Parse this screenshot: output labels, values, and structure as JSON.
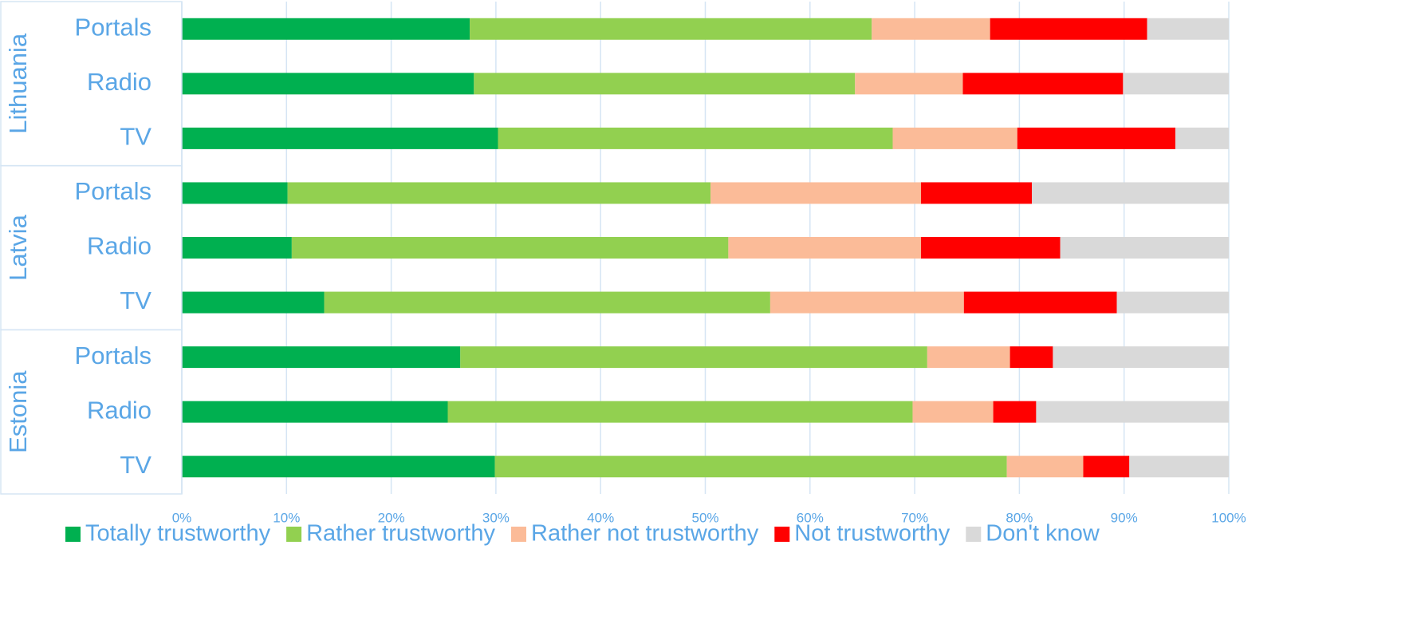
{
  "chart_data": {
    "type": "stacked-barh",
    "groups": [
      {
        "name": "Lithuania",
        "categories": [
          "Portals",
          "Radio",
          "TV"
        ]
      },
      {
        "name": "Latvia",
        "categories": [
          "Portals",
          "Radio",
          "TV"
        ]
      },
      {
        "name": "Estonia",
        "categories": [
          "Portals",
          "Radio",
          "TV"
        ]
      }
    ],
    "series": [
      {
        "name": "Totally trustworthy",
        "color": "#00b050",
        "values": [
          27.5,
          27.9,
          30.2,
          10.1,
          10.5,
          13.6,
          26.6,
          25.4,
          29.9
        ]
      },
      {
        "name": "Rather trustworthy",
        "color": "#92d050",
        "values": [
          38.4,
          36.4,
          37.7,
          40.4,
          41.7,
          42.6,
          44.6,
          44.4,
          48.9
        ]
      },
      {
        "name": "Rather not trustworthy",
        "color": "#fbbb98",
        "values": [
          11.3,
          10.3,
          11.9,
          20.1,
          18.4,
          18.5,
          7.9,
          7.7,
          7.3
        ]
      },
      {
        "name": "Not trustworthy",
        "color": "#ff0000",
        "values": [
          15.0,
          15.3,
          15.1,
          10.6,
          13.3,
          14.6,
          4.1,
          4.1,
          4.4
        ]
      },
      {
        "name": "Don't know",
        "color": "#d9d9d9",
        "values": [
          7.8,
          10.1,
          5.1,
          18.8,
          16.1,
          10.7,
          16.8,
          18.4,
          9.5
        ]
      }
    ],
    "xlim": [
      0,
      100
    ],
    "xticks": [
      {
        "value": 0,
        "label": "0%"
      },
      {
        "value": 10,
        "label": "10%"
      },
      {
        "value": 20,
        "label": "20%"
      },
      {
        "value": 30,
        "label": "30%"
      },
      {
        "value": 40,
        "label": "40%"
      },
      {
        "value": 50,
        "label": "50%"
      },
      {
        "value": 60,
        "label": "60%"
      },
      {
        "value": 70,
        "label": "70%"
      },
      {
        "value": 80,
        "label": "80%"
      },
      {
        "value": 90,
        "label": "90%"
      },
      {
        "value": 100,
        "label": "100%"
      }
    ],
    "grid": true,
    "legend": "bottom"
  }
}
